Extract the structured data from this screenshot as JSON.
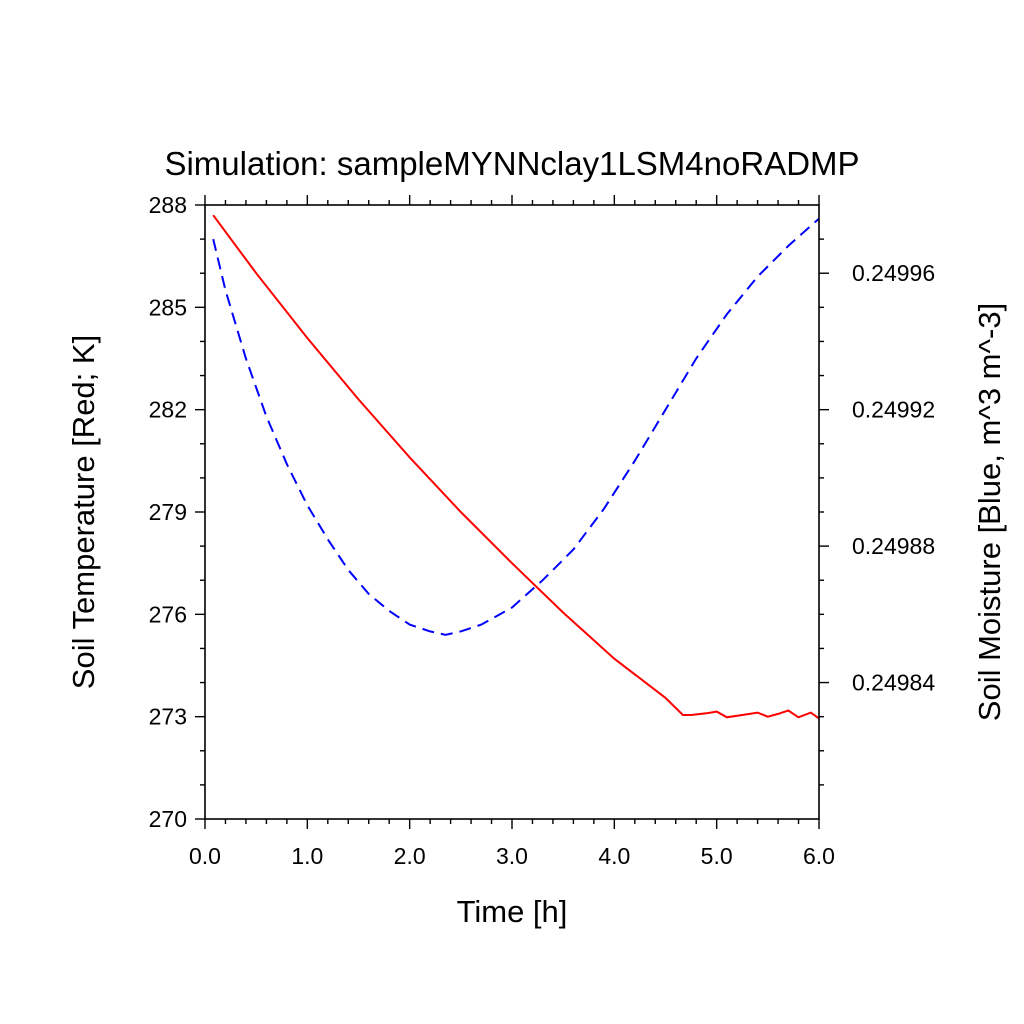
{
  "chart_data": {
    "type": "line",
    "title": "Simulation: sampleMYNNclay1LSM4noRADMP",
    "xlabel": "Time [h]",
    "ylabel_left": "Soil Temperature [Red; K]",
    "ylabel_right": "Soil Moisture [Blue, m^3 m^-3]",
    "xlim": [
      0.0,
      6.0
    ],
    "ylim_left": [
      270,
      288
    ],
    "ylim_right": [
      0.2498,
      0.24998
    ],
    "x_ticks": [
      "0.0",
      "1.0",
      "2.0",
      "3.0",
      "4.0",
      "5.0",
      "6.0"
    ],
    "y_left_ticks": [
      "270",
      "273",
      "276",
      "279",
      "282",
      "285",
      "288"
    ],
    "y_right_ticks": [
      "0.24984",
      "0.24988",
      "0.24992",
      "0.24996"
    ],
    "grid": false,
    "series": [
      {
        "axis": "left",
        "color": "#ff0000",
        "dash": "solid",
        "x": [
          0.08,
          0.5,
          1.0,
          1.5,
          2.0,
          2.5,
          3.0,
          3.5,
          4.0,
          4.5,
          4.67,
          4.75,
          4.9,
          5.0,
          5.1,
          5.25,
          5.4,
          5.5,
          5.6,
          5.7,
          5.8,
          5.92,
          6.0
        ],
        "y": [
          287.7,
          286.0,
          284.1,
          282.3,
          280.6,
          279.0,
          277.5,
          276.05,
          274.7,
          273.55,
          273.05,
          273.05,
          273.1,
          273.15,
          272.98,
          273.05,
          273.12,
          273.0,
          273.08,
          273.18,
          272.98,
          273.12,
          272.95
        ]
      },
      {
        "axis": "right",
        "color": "#0000ff",
        "dash": "dashed",
        "x": [
          0.08,
          0.2,
          0.4,
          0.6,
          0.8,
          1.0,
          1.2,
          1.4,
          1.6,
          1.8,
          2.0,
          2.2,
          2.35,
          2.5,
          2.7,
          3.0,
          3.3,
          3.6,
          3.9,
          4.2,
          4.5,
          4.8,
          5.1,
          5.4,
          5.7,
          6.0
        ],
        "y": [
          0.24997,
          0.249955,
          0.249935,
          0.249918,
          0.249904,
          0.249892,
          0.249882,
          0.249873,
          0.249866,
          0.249861,
          0.249857,
          0.249855,
          0.249854,
          0.249855,
          0.249857,
          0.249862,
          0.24987,
          0.249879,
          0.249891,
          0.249905,
          0.24992,
          0.249935,
          0.249948,
          0.249959,
          0.249968,
          0.249976
        ]
      }
    ]
  }
}
